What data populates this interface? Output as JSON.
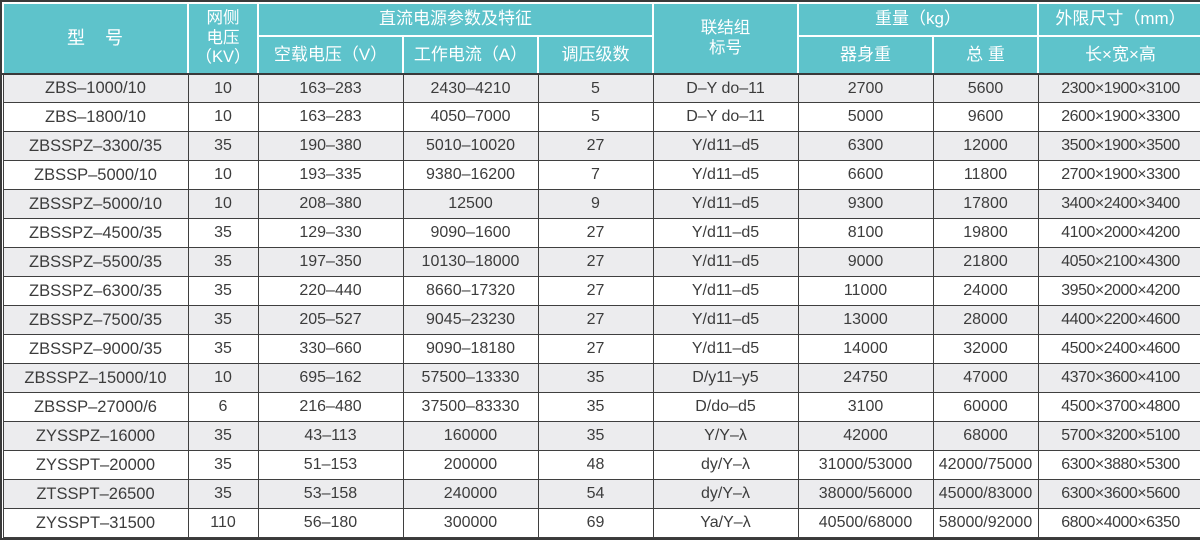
{
  "colors": {
    "header_bg": "#5ec3cb",
    "header_text": "#ffffff",
    "row_stripe": "#ececee",
    "row_plain": "#ffffff",
    "border_dark": "#3a3a3a",
    "data_text": "#3c3c3c"
  },
  "table": {
    "column_ids": [
      "model",
      "grid_voltage_kv",
      "no_load_voltage_v",
      "working_current_a",
      "regulation_steps",
      "connection_group",
      "body_weight_kg",
      "total_weight_kg",
      "dimensions_mm"
    ],
    "header": {
      "model": "型　号",
      "grid_voltage": "网侧\n电压\n（KV）",
      "dc_params_group": "直流电源参数及特征",
      "no_load_voltage": "空载电压（V）",
      "working_current": "工作电流（A）",
      "regulation_steps": "调压级数",
      "connection_group": "联结组\n标号",
      "weight_group": "重量（kg）",
      "body_weight": "器身重",
      "total_weight": "总  重",
      "dimensions_group": "外限尺寸（mm）",
      "dimensions_sub": "长×宽×高"
    },
    "rows": [
      [
        "ZBS–1000/10",
        "10",
        "163–283",
        "2430–4210",
        "5",
        "D–Y do–11",
        "2700",
        "5600",
        "2300×1900×3100"
      ],
      [
        "ZBS–1800/10",
        "10",
        "163–283",
        "4050–7000",
        "5",
        "D–Y do–11",
        "5000",
        "9600",
        "2600×1900×3300"
      ],
      [
        "ZBSSPZ–3300/35",
        "35",
        "190–380",
        "5010–10020",
        "27",
        "Y/d11–d5",
        "6300",
        "12000",
        "3500×1900×3500"
      ],
      [
        "ZBSSP–5000/10",
        "10",
        "193–335",
        "9380–16200",
        "7",
        "Y/d11–d5",
        "6600",
        "11800",
        "2700×1900×3300"
      ],
      [
        "ZBSSPZ–5000/10",
        "10",
        "208–380",
        "12500",
        "9",
        "Y/d11–d5",
        "9300",
        "17800",
        "3400×2400×3400"
      ],
      [
        "ZBSSPZ–4500/35",
        "35",
        "129–330",
        "9090–1600",
        "27",
        "Y/d11–d5",
        "8100",
        "19800",
        "4100×2000×4200"
      ],
      [
        "ZBSSPZ–5500/35",
        "35",
        "197–350",
        "10130–18000",
        "27",
        "Y/d11–d5",
        "9000",
        "21800",
        "4050×2100×4300"
      ],
      [
        "ZBSSPZ–6300/35",
        "35",
        "220–440",
        "8660–17320",
        "27",
        "Y/d11–d5",
        "11000",
        "24000",
        "3950×2000×4200"
      ],
      [
        "ZBSSPZ–7500/35",
        "35",
        "205–527",
        "9045–23230",
        "27",
        "Y/d11–d5",
        "13000",
        "28000",
        "4400×2200×4600"
      ],
      [
        "ZBSSPZ–9000/35",
        "35",
        "330–660",
        "9090–18180",
        "27",
        "Y/d11–d5",
        "14000",
        "32000",
        "4500×2400×4600"
      ],
      [
        "ZBSSPZ–15000/10",
        "10",
        "695–162",
        "57500–13330",
        "35",
        "D/y11–y5",
        "24750",
        "47000",
        "4370×3600×4100"
      ],
      [
        "ZBSSP–27000/6",
        "6",
        "216–480",
        "37500–83330",
        "35",
        "D/do–d5",
        "3100",
        "60000",
        "4500×3700×4800"
      ],
      [
        "ZYSSPZ–16000",
        "35",
        "43–113",
        "160000",
        "35",
        "Y/Y–λ",
        "42000",
        "68000",
        "5700×3200×5100"
      ],
      [
        "ZYSSPT–20000",
        "35",
        "51–153",
        "200000",
        "48",
        "dy/Y–λ",
        "31000/53000",
        "42000/75000",
        "6300×3880×5300"
      ],
      [
        "ZTSSPT–26500",
        "35",
        "53–158",
        "240000",
        "54",
        "dy/Y–λ",
        "38000/56000",
        "45000/83000",
        "6300×3600×5600"
      ],
      [
        "ZYSSPT–31500",
        "110",
        "56–180",
        "300000",
        "69",
        "Ya/Y–λ",
        "40500/68000",
        "58000/92000",
        "6800×4000×6350"
      ]
    ]
  }
}
